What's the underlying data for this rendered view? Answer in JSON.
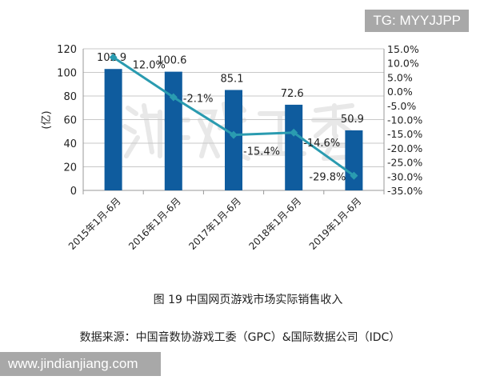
{
  "chart_data": {
    "type": "bar+line",
    "title": "图 19  中国网页游戏市场实际销售收入",
    "source": "数据来源：中国音数协游戏工委（GPC）&国际数据公司（IDC）",
    "categories": [
      "2015年1月-6月",
      "2016年1月-6月",
      "2017年1月-6月",
      "2018年1月-6月",
      "2019年1月-6月"
    ],
    "ylabel": "(亿)",
    "ylim": [
      0,
      120
    ],
    "yticks": [
      0,
      20,
      40,
      60,
      80,
      100,
      120
    ],
    "y2lim": [
      -35,
      15
    ],
    "y2ticks": [
      "15.0%",
      "10.0%",
      "5.0%",
      "0.0%",
      "-5.0%",
      "-10.0%",
      "-15.0%",
      "-20.0%",
      "-25.0%",
      "-30.0%",
      "-35.0%"
    ],
    "grid": true,
    "series": [
      {
        "type": "bar",
        "axis": "left",
        "values": [
          102.9,
          100.6,
          85.1,
          72.6,
          50.9
        ],
        "labels": [
          "102.9",
          "100.6",
          "85.1",
          "72.6",
          "50.9"
        ],
        "color": "#0f5c9e"
      },
      {
        "type": "line",
        "axis": "right",
        "values": [
          12.0,
          -2.1,
          -15.4,
          -14.6,
          -29.8
        ],
        "labels": [
          "12.0%",
          "-2.1%",
          "-15.4%",
          "-14.6%",
          "-29.8%"
        ],
        "color": "#2a9bb0"
      }
    ],
    "watermark": "游戏工委"
  },
  "overlays": {
    "top_right": "TG: MYYJJPP",
    "bottom_left": "www.jindianjiang.com"
  }
}
